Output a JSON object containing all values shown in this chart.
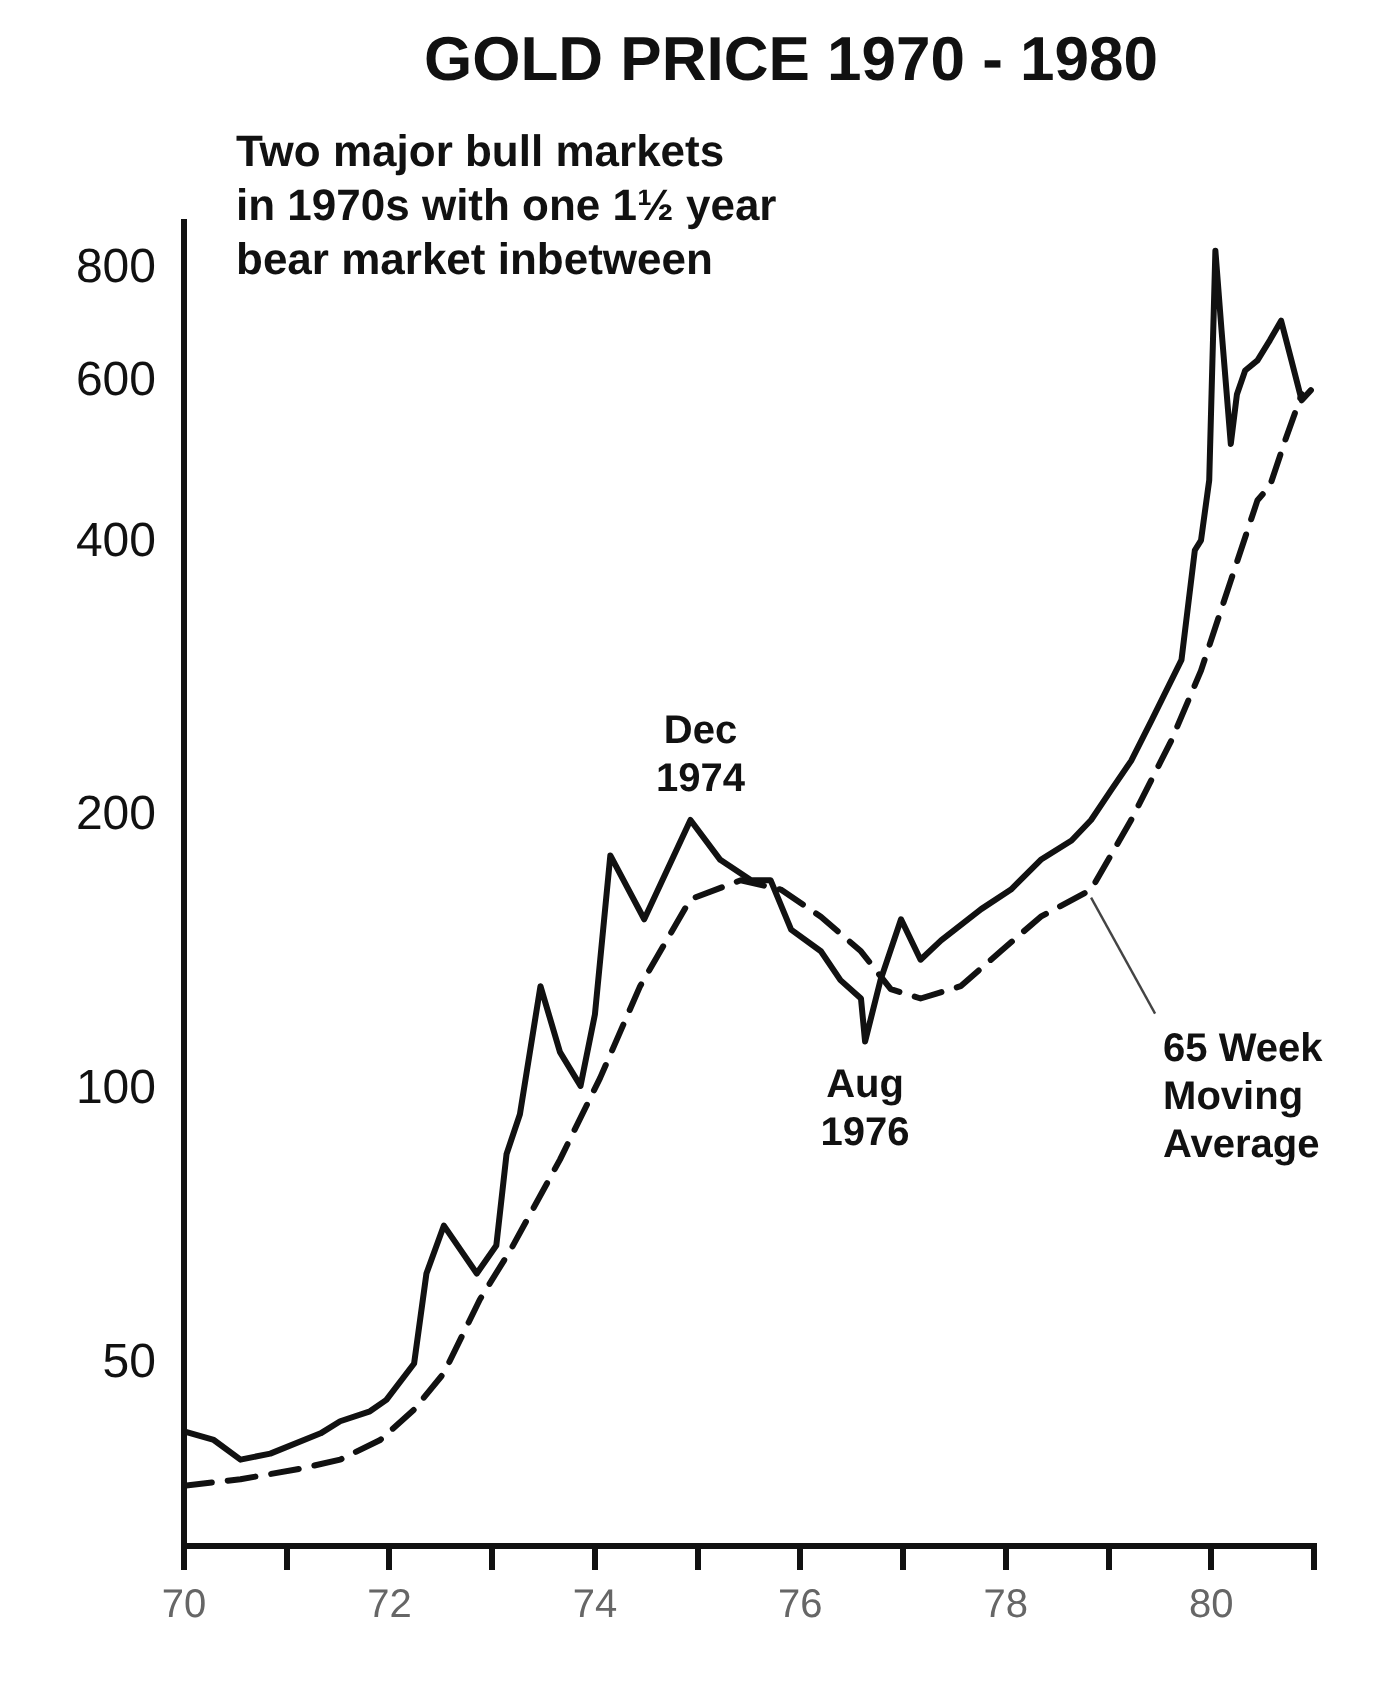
{
  "chart_data": {
    "type": "line",
    "title": "GOLD PRICE 1970 - 1980",
    "subtitle": "Two major bull markets\nin 1970s with one 1½ year\nbear market inbetween",
    "log": "y",
    "xlim": [
      70,
      81
    ],
    "ylim": [
      31.5,
      900
    ],
    "xticks": [
      70,
      {
        "value": 71,
        "label": null
      },
      72,
      {
        "value": 73,
        "label": null
      },
      74,
      {
        "value": 75,
        "label": null
      },
      76,
      {
        "value": 77,
        "label": null
      },
      78,
      {
        "value": 79,
        "label": null
      },
      80,
      {
        "value": 81,
        "label": null
      }
    ],
    "yticks": [
      50,
      100,
      200,
      400,
      600,
      800
    ],
    "marker": "none",
    "legend": false,
    "series": [
      {
        "color": "#111111",
        "line_style": "solid",
        "x": [
          70.0,
          70.29,
          70.55,
          70.84,
          71.33,
          71.52,
          71.81,
          71.97,
          72.24,
          72.36,
          72.53,
          72.85,
          73.04,
          73.14,
          73.27,
          73.47,
          73.66,
          73.86,
          74.0,
          74.15,
          74.48,
          74.93,
          75.22,
          75.52,
          75.71,
          75.91,
          76.2,
          76.39,
          76.59,
          76.63,
          76.78,
          76.98,
          77.17,
          77.37,
          77.76,
          78.05,
          78.34,
          78.64,
          78.83,
          79.03,
          79.22,
          79.42,
          79.71,
          79.84,
          79.9,
          79.98,
          80.04,
          80.1,
          80.19,
          80.25,
          80.33,
          80.45,
          80.57,
          80.68,
          80.78,
          80.88,
          80.97
        ],
        "values": [
          42.1,
          41.2,
          39.2,
          39.8,
          41.9,
          43.2,
          44.3,
          45.6,
          50,
          62.8,
          70.9,
          62.8,
          67.4,
          85,
          94,
          130,
          110,
          101,
          121,
          181,
          154,
          198,
          179,
          170,
          170,
          150,
          142,
          132,
          126,
          113,
          132,
          154,
          139,
          146,
          158,
          166,
          179,
          188,
          198,
          214,
          230,
          255,
          297,
          392,
          402,
          468,
          837,
          684,
          513,
          582,
          618,
          634,
          667,
          701,
          634,
          573,
          588
        ]
      },
      {
        "color": "#111111",
        "line_style": "dashed",
        "x": [
          70.0,
          70.55,
          71.13,
          71.52,
          71.91,
          72.24,
          72.53,
          72.88,
          73.18,
          73.66,
          74.05,
          74.44,
          74.93,
          75.42,
          75.81,
          76.2,
          76.59,
          76.88,
          77.17,
          77.56,
          77.95,
          78.34,
          78.83,
          79.22,
          79.61,
          79.9,
          80.19,
          80.45,
          80.57,
          80.72,
          80.88
        ],
        "values": [
          36.7,
          37.3,
          38.3,
          39.2,
          41.2,
          44.5,
          48.8,
          58.8,
          66.7,
          83.8,
          103,
          130,
          162,
          170,
          166,
          155,
          142,
          129,
          126,
          130,
          142,
          155,
          166,
          198,
          242,
          289,
          363,
          445,
          461,
          518,
          582
        ]
      }
    ],
    "annotations": [
      {
        "text": "Dec\n1974",
        "x": 74.93,
        "y": 198
      },
      {
        "text": "Aug\n1976",
        "x": 76.63,
        "y": 113
      },
      {
        "text": "65 Week\nMoving\nAverage",
        "x": 78.83,
        "y": 166
      }
    ]
  }
}
